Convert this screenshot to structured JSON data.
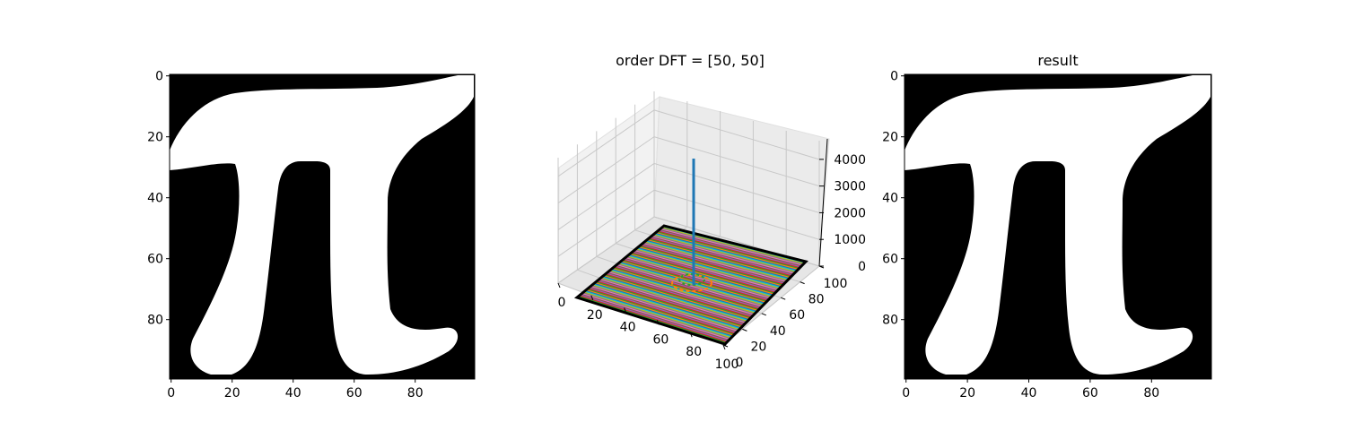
{
  "chart_data": [
    {
      "type": "image",
      "title": "",
      "image_size": [
        100,
        100
      ],
      "colormap": "gray",
      "xticks": [
        0,
        20,
        40,
        60,
        80
      ],
      "yticks": [
        0,
        20,
        40,
        60,
        80
      ]
    },
    {
      "type": "surface",
      "title": "order DFT = [50, 50]",
      "xticks": [
        0,
        20,
        40,
        60,
        80,
        100
      ],
      "yticks": [
        0,
        20,
        40,
        60,
        80,
        100
      ],
      "zticks": [
        0,
        1000,
        2000,
        3000,
        4000
      ],
      "xlim": [
        0,
        100
      ],
      "ylim": [
        0,
        100
      ],
      "zlim": [
        0,
        4700
      ],
      "peak": {
        "x": 50,
        "y": 50,
        "z": 4000
      },
      "line_colors": [
        "#1f77b4",
        "#ff7f0e",
        "#2ca02c",
        "#d62728",
        "#9467bd",
        "#8c564b",
        "#e377c2",
        "#7f7f7f",
        "#bcbd22",
        "#17becf"
      ]
    },
    {
      "type": "image",
      "title": "result",
      "image_size": [
        100,
        100
      ],
      "colormap": "gray",
      "xticks": [
        0,
        20,
        40,
        60,
        80
      ],
      "yticks": [
        0,
        20,
        40,
        60,
        80
      ]
    }
  ]
}
